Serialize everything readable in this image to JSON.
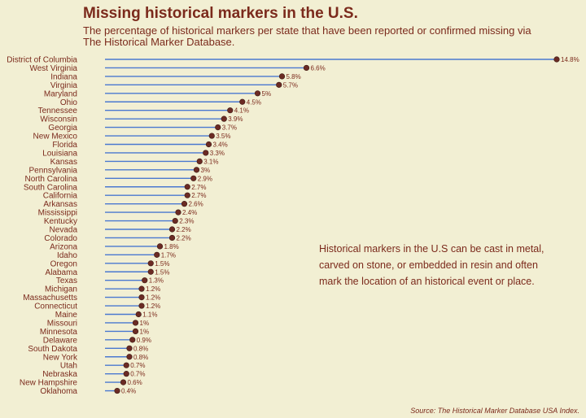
{
  "title": "Missing historical markers in the U.S.",
  "subtitle": "The percentage of historical markers per state that have been reported or confirmed missing via The Historical Marker Database.",
  "annotation": "Historical markers in the U.S can be cast in metal, carved on stone, or embedded in resin and often mark the location of an historical event or place.",
  "source": "Source: The Historical Marker Database USA Index.",
  "colors": {
    "background": "#f2efd3",
    "line": "#4a78d0",
    "dot": "#6b2b24",
    "text": "#7b2a1c"
  },
  "chart_data": {
    "type": "lollipop",
    "value_suffix": "%",
    "categories": [
      "District of Columbia",
      "West Virginia",
      "Indiana",
      "Virginia",
      "Maryland",
      "Ohio",
      "Tennessee",
      "Wisconsin",
      "Georgia",
      "New Mexico",
      "Florida",
      "Louisiana",
      "Kansas",
      "Pennsylvania",
      "North Carolina",
      "South Carolina",
      "California",
      "Arkansas",
      "Mississippi",
      "Kentucky",
      "Nevada",
      "Colorado",
      "Arizona",
      "Idaho",
      "Oregon",
      "Alabama",
      "Texas",
      "Michigan",
      "Massachusetts",
      "Connecticut",
      "Maine",
      "Missouri",
      "Minnesota",
      "Delaware",
      "South Dakota",
      "New York",
      "Utah",
      "Nebraska",
      "New Hampshire",
      "Oklahoma"
    ],
    "values": [
      14.8,
      6.6,
      5.8,
      5.7,
      5,
      4.5,
      4.1,
      3.9,
      3.7,
      3.5,
      3.4,
      3.3,
      3.1,
      3,
      2.9,
      2.7,
      2.7,
      2.6,
      2.4,
      2.3,
      2.2,
      2.2,
      1.8,
      1.7,
      1.5,
      1.5,
      1.3,
      1.2,
      1.2,
      1.2,
      1.1,
      1,
      1,
      0.9,
      0.8,
      0.8,
      0.7,
      0.7,
      0.6,
      0.4
    ],
    "xlim": [
      0,
      14.8
    ],
    "grid": false,
    "legend": "none"
  }
}
